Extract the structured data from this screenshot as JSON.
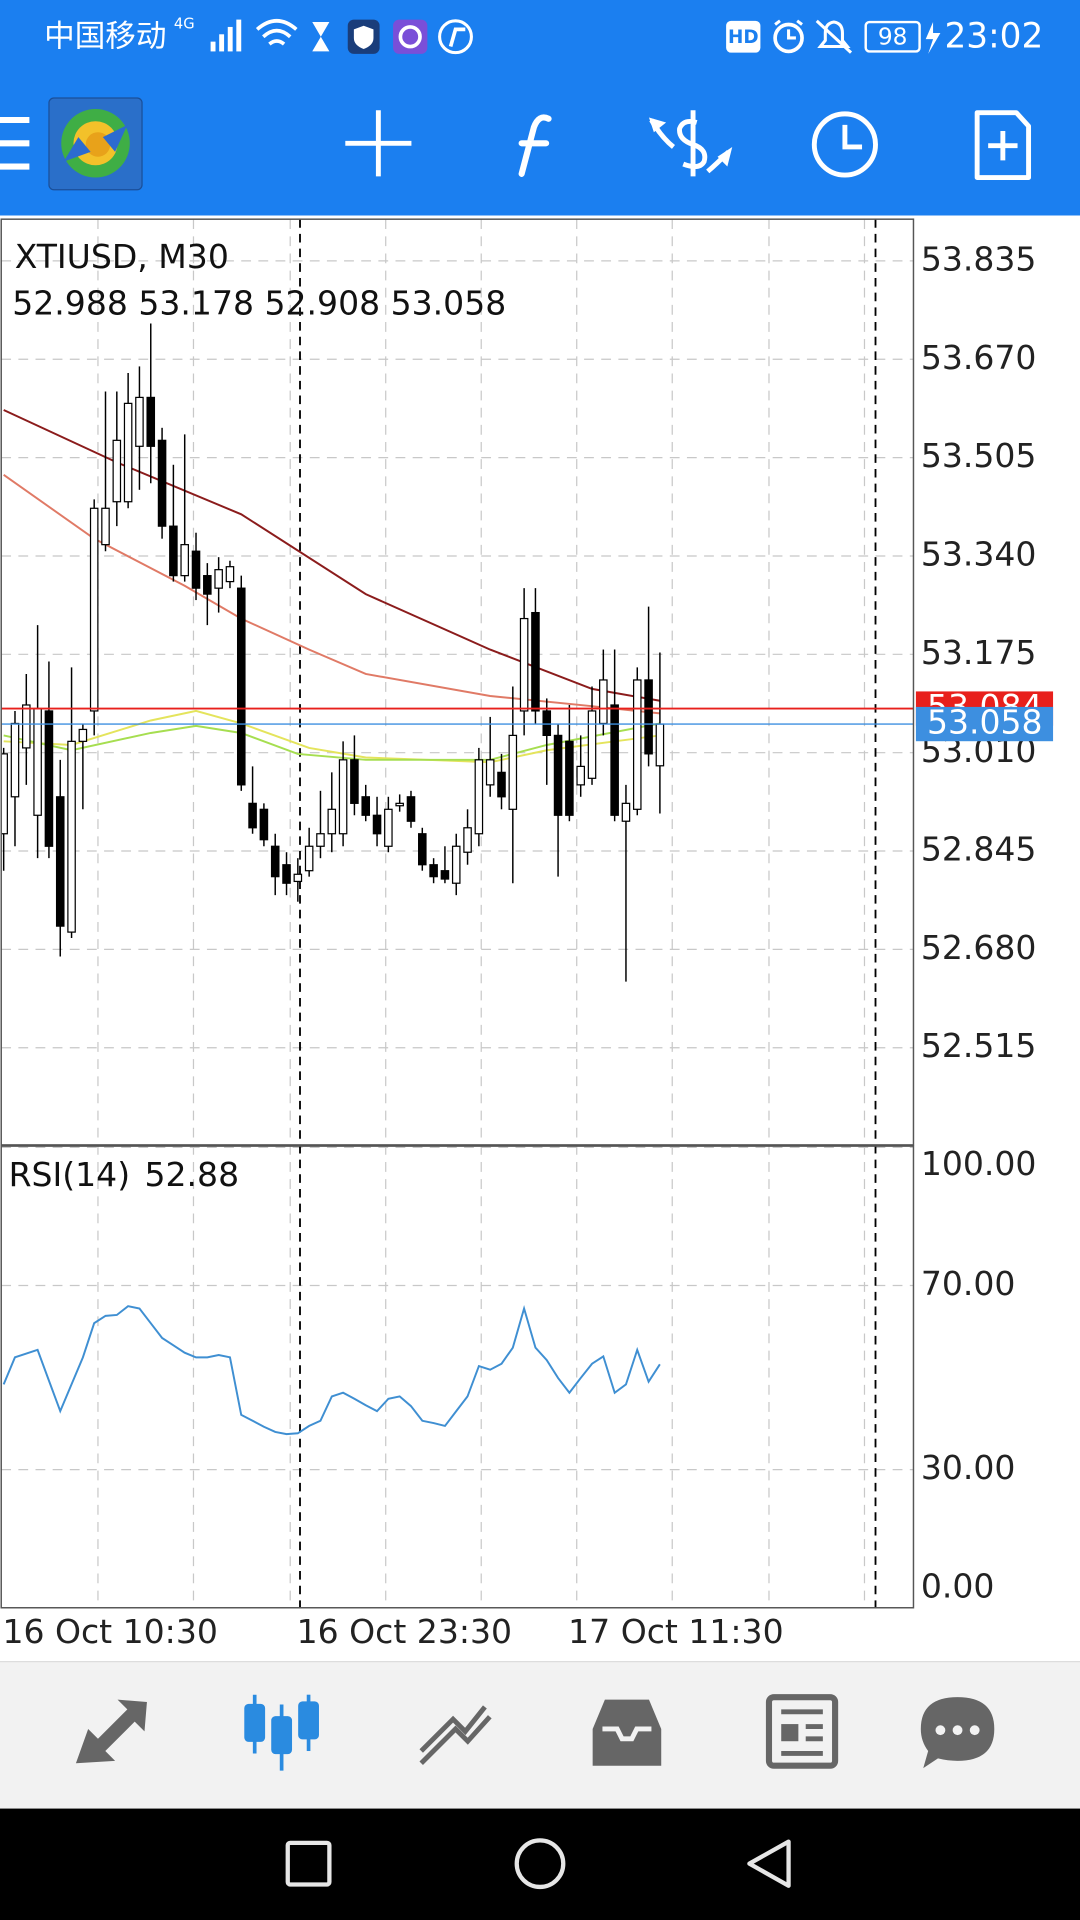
{
  "status_bar": {
    "carrier": "中国移动",
    "network": "4G",
    "hd": "HD",
    "battery": "98",
    "time": "23:02"
  },
  "chart_data": {
    "type": "candlestick",
    "title": "XTIUSD, M30",
    "categories": [
      "16 Oct 10:30",
      null,
      null,
      null,
      null,
      null,
      null,
      null,
      null,
      null,
      null,
      null,
      null,
      null,
      null,
      null,
      null,
      null,
      null,
      null,
      null,
      null,
      null,
      null,
      null,
      null,
      "16 Oct 23:30",
      null,
      null,
      null,
      null,
      null,
      null,
      null,
      null,
      null,
      null,
      null,
      null,
      null,
      null,
      null,
      null,
      null,
      null,
      null,
      null,
      null,
      null,
      null,
      "17 Oct 11:30",
      null,
      null,
      null,
      null,
      null,
      null,
      null,
      null
    ],
    "open": [
      52.874,
      52.936,
      53.018,
      52.905,
      53.08,
      52.936,
      52.709,
      53.029,
      53.08,
      53.359,
      53.431,
      53.431,
      53.524,
      53.606,
      53.534,
      53.39,
      53.307,
      53.348,
      53.307,
      53.286,
      53.297,
      53.286,
      52.925,
      52.915,
      52.853,
      52.822,
      52.794,
      52.812,
      52.853,
      52.874,
      52.874,
      52.998,
      52.936,
      52.905,
      52.853,
      52.921,
      52.936,
      52.874,
      52.822,
      52.812,
      52.791,
      52.843,
      52.874,
      52.956,
      52.977,
      52.915,
      53.08,
      53.245,
      53.08,
      53.039,
      53.029,
      52.956,
      52.967,
      53.059,
      53.09,
      52.895,
      52.915,
      53.132,
      52.988
    ],
    "high": [
      53.018,
      53.08,
      53.142,
      53.224,
      53.163,
      52.998,
      53.153,
      53.059,
      53.435,
      53.616,
      53.616,
      53.647,
      53.658,
      53.73,
      53.555,
      53.493,
      53.544,
      53.379,
      53.328,
      53.338,
      53.332,
      53.307,
      52.987,
      52.925,
      52.874,
      52.843,
      52.833,
      52.884,
      52.946,
      52.977,
      53.029,
      53.039,
      52.956,
      52.936,
      52.936,
      52.94,
      52.946,
      52.884,
      52.833,
      52.853,
      52.874,
      52.915,
      53.018,
      53.07,
      53.008,
      53.121,
      53.286,
      53.286,
      53.101,
      53.059,
      53.09,
      53.039,
      53.121,
      53.183,
      53.183,
      52.956,
      53.153,
      53.255,
      53.178
    ],
    "low": [
      52.812,
      52.853,
      52.956,
      52.833,
      52.833,
      52.668,
      52.699,
      52.915,
      53.039,
      53.348,
      53.39,
      53.42,
      53.451,
      53.462,
      53.369,
      53.297,
      53.297,
      53.266,
      53.224,
      53.245,
      53.286,
      52.946,
      52.874,
      52.853,
      52.771,
      52.771,
      52.76,
      52.802,
      52.833,
      52.843,
      52.853,
      52.905,
      52.895,
      52.853,
      52.843,
      52.911,
      52.884,
      52.812,
      52.791,
      52.791,
      52.771,
      52.822,
      52.853,
      52.936,
      52.915,
      52.791,
      53.039,
      53.059,
      52.956,
      52.802,
      52.895,
      52.936,
      52.956,
      53.039,
      52.895,
      52.626,
      52.905,
      52.987,
      52.908
    ],
    "close": [
      53.008,
      53.059,
      53.09,
      53.084,
      52.853,
      52.719,
      53.029,
      53.049,
      53.42,
      53.42,
      53.534,
      53.596,
      53.606,
      53.524,
      53.39,
      53.307,
      53.359,
      53.286,
      53.276,
      53.317,
      53.322,
      52.956,
      52.884,
      52.864,
      52.802,
      52.791,
      52.806,
      52.853,
      52.874,
      52.915,
      52.998,
      52.925,
      52.905,
      52.874,
      52.915,
      52.925,
      52.895,
      52.822,
      52.802,
      52.798,
      52.853,
      52.884,
      52.998,
      52.998,
      52.936,
      53.039,
      53.235,
      53.08,
      53.039,
      52.905,
      52.905,
      52.987,
      53.08,
      53.132,
      52.905,
      52.925,
      53.132,
      53.008,
      53.058
    ],
    "ylim": [
      52.352,
      53.905
    ],
    "yticks": [
      53.835,
      {
        "value": 53.67,
        "label": "53.670"
      },
      53.505,
      {
        "value": 53.34,
        "label": "53.340"
      },
      53.175,
      {
        "value": 53.01,
        "label": "53.010"
      },
      52.845,
      {
        "value": 52.68,
        "label": "52.680"
      },
      52.515
    ],
    "grid": true,
    "up_color": "#ffffff",
    "down_color": "#000000",
    "moving_averages": [
      {
        "color": "#8b1c1c",
        "x": [
          0,
          10,
          21,
          32,
          43,
          52,
          58
        ],
        "values": [
          53.585,
          53.497,
          53.41,
          53.276,
          53.183,
          53.117,
          53.097
        ]
      },
      {
        "color": "#e07a66",
        "x": [
          0,
          8,
          16,
          21,
          27,
          32,
          43,
          52,
          58
        ],
        "values": [
          53.476,
          53.369,
          53.29,
          53.235,
          53.183,
          53.142,
          53.105,
          53.088,
          53.076
        ]
      },
      {
        "color": "#e4e45c",
        "x": [
          0,
          6,
          13,
          17,
          21,
          27,
          32,
          43,
          48,
          58
        ],
        "values": [
          53.029,
          53.023,
          53.064,
          53.08,
          53.059,
          53.018,
          53.002,
          52.994,
          53.014,
          53.039
        ]
      },
      {
        "color": "#a6de50",
        "x": [
          0,
          6,
          13,
          17,
          21,
          26,
          32,
          43,
          48,
          58
        ],
        "values": [
          53.039,
          53.014,
          53.043,
          53.055,
          53.043,
          53.008,
          52.998,
          52.998,
          53.023,
          53.059
        ]
      }
    ],
    "ask": 53.084,
    "ask_color": "#e8201c",
    "bid": 53.058,
    "bid_color": "#3d8fe0",
    "rsi": {
      "label": "RSI(14)",
      "color": "#3f8fd2",
      "ylim": [
        0,
        100
      ],
      "yticks": [
        {
          "value": 100,
          "label": "100.00"
        },
        {
          "value": 70,
          "label": "70.00"
        },
        {
          "value": 30,
          "label": "30.00"
        },
        {
          "value": 0,
          "label": "0.00"
        }
      ],
      "values": [
        48.5,
        54.4,
        55.2,
        56.0,
        49.3,
        42.7,
        48.5,
        54.4,
        61.8,
        63.4,
        63.6,
        65.5,
        65.0,
        61.8,
        58.6,
        57.0,
        55.4,
        54.4,
        54.4,
        54.9,
        54.4,
        41.9,
        40.6,
        39.3,
        38.2,
        37.7,
        37.9,
        39.5,
        40.6,
        45.9,
        46.7,
        45.4,
        44.0,
        42.7,
        45.4,
        45.9,
        43.8,
        40.6,
        40.1,
        39.5,
        42.7,
        45.9,
        52.5,
        51.7,
        53.0,
        56.5,
        65.0,
        56.5,
        53.8,
        49.9,
        46.7,
        49.9,
        53.0,
        54.6,
        46.7,
        48.5,
        56.0,
        49.1,
        52.88
      ]
    }
  }
}
